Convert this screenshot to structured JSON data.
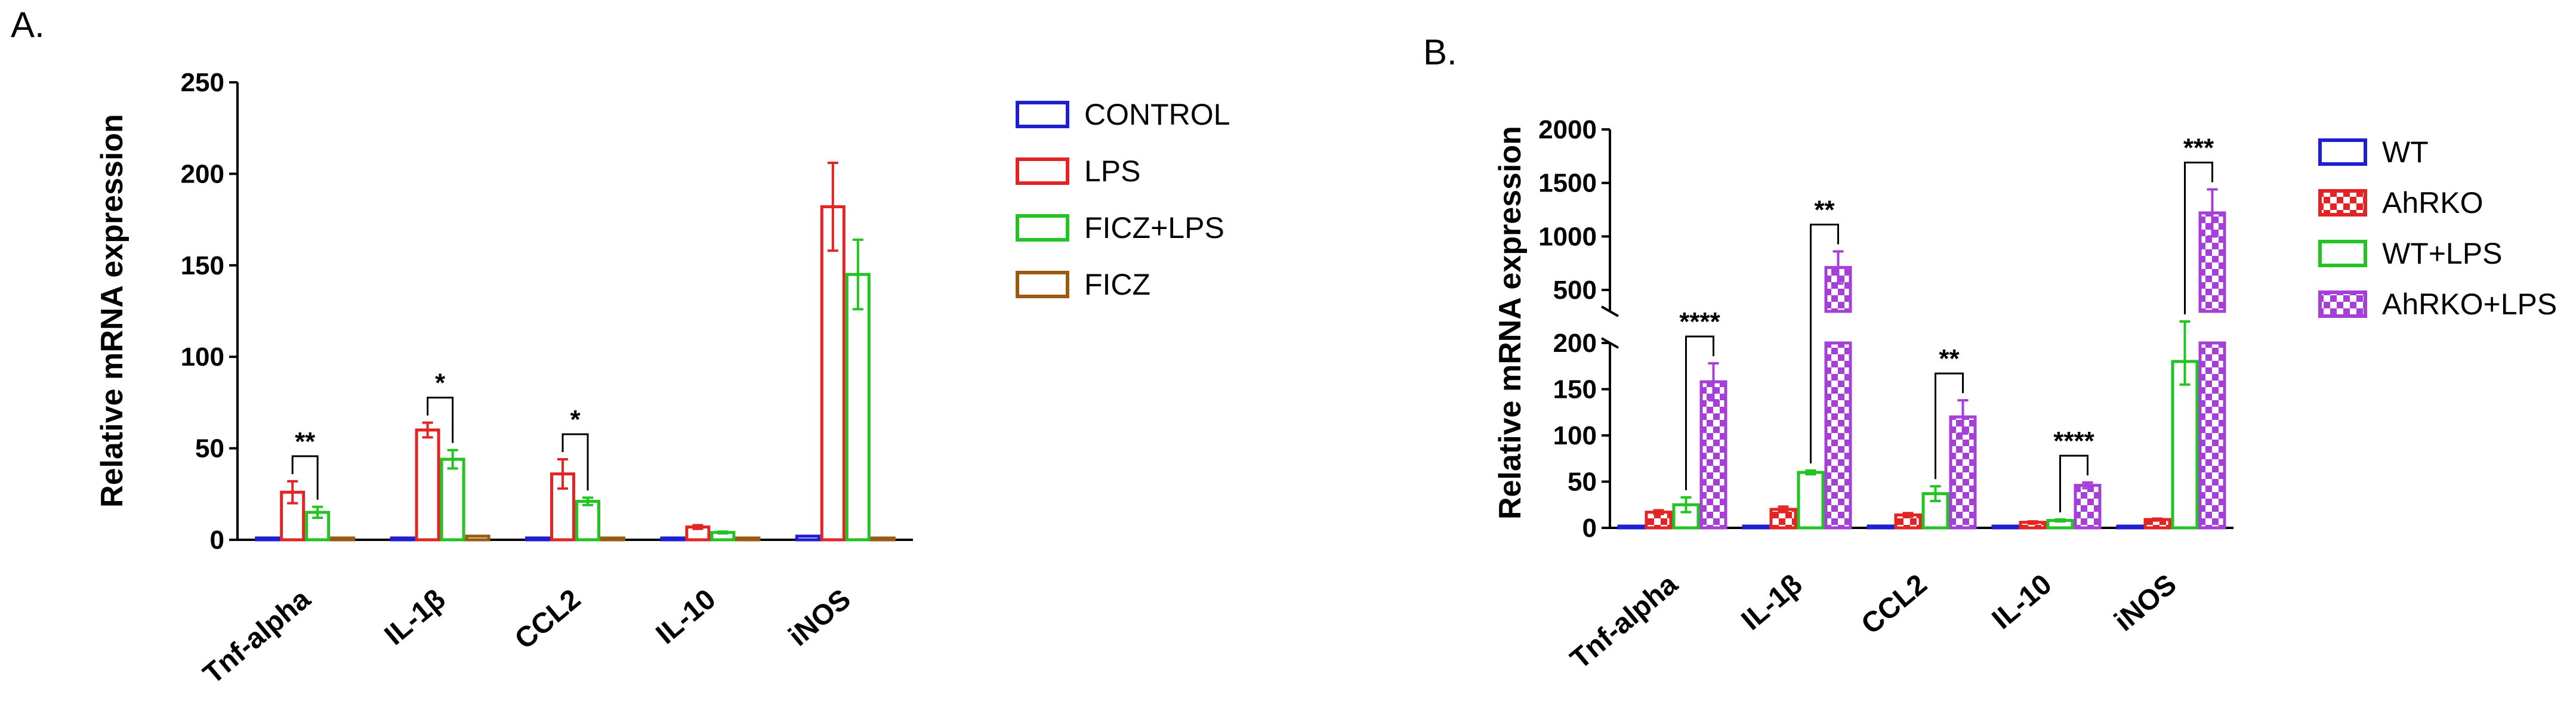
{
  "panels": {
    "a": {
      "letter": "A."
    },
    "b": {
      "letter": "B."
    }
  },
  "chart_data": [
    {
      "type": "bar",
      "panel": "A.",
      "ylabel": "Relative mRNA expression",
      "xlabel": "",
      "ylim": [
        0,
        250
      ],
      "yticks": [
        0,
        50,
        100,
        150,
        200,
        250
      ],
      "grid": false,
      "legend_position": "right",
      "categories": [
        "Tnf-alpha",
        "IL-1β",
        "CCL2",
        "IL-10",
        "iNOS"
      ],
      "series": [
        {
          "name": "CONTROL",
          "color": "#1f1fd1",
          "pattern": "solid",
          "values": [
            1,
            1,
            1,
            1,
            2
          ],
          "errors": [
            0,
            0,
            0,
            0,
            0
          ]
        },
        {
          "name": "LPS",
          "color": "#e32424",
          "pattern": "solid",
          "values": [
            26,
            60,
            36,
            7,
            182
          ],
          "errors": [
            6,
            4,
            8,
            1,
            24
          ]
        },
        {
          "name": "FICZ+LPS",
          "color": "#22c322",
          "pattern": "solid",
          "values": [
            15,
            44,
            21,
            4,
            145
          ],
          "errors": [
            3,
            5,
            2,
            0.5,
            19
          ]
        },
        {
          "name": "FICZ",
          "color": "#9b5a12",
          "pattern": "solid",
          "values": [
            1,
            2,
            0.5,
            0.5,
            0.5
          ],
          "errors": [
            0,
            0,
            0,
            0,
            0
          ]
        }
      ],
      "annotations": [
        {
          "category": "Tnf-alpha",
          "from": "LPS",
          "to": "FICZ+LPS",
          "text": "**"
        },
        {
          "category": "IL-1β",
          "from": "LPS",
          "to": "FICZ+LPS",
          "text": "*"
        },
        {
          "category": "CCL2",
          "from": "LPS",
          "to": "FICZ+LPS",
          "text": "*"
        }
      ]
    },
    {
      "type": "bar",
      "panel": "B.",
      "ylabel": "Relative mRNA expression",
      "xlabel": "",
      "broken_axis": true,
      "lower_range": [
        0,
        200
      ],
      "upper_range": [
        300,
        2000
      ],
      "yticks_lower": [
        0,
        50,
        100,
        150,
        200
      ],
      "yticks_upper": [
        500,
        1000,
        1500,
        2000
      ],
      "grid": false,
      "legend_position": "right",
      "categories": [
        "Tnf-alpha",
        "IL-1β",
        "CCL2",
        "IL-10",
        "iNOS"
      ],
      "series": [
        {
          "name": "WT",
          "color": "#1f1fd1",
          "pattern": "solid",
          "values": [
            1,
            1,
            2,
            1,
            1
          ],
          "errors": [
            0,
            0,
            0,
            0,
            0
          ]
        },
        {
          "name": "AhRKO",
          "color": "#e32424",
          "pattern": "checker",
          "values": [
            17,
            20,
            14,
            6,
            9
          ],
          "errors": [
            2,
            3,
            2,
            1,
            1
          ]
        },
        {
          "name": "WT+LPS",
          "color": "#22c322",
          "pattern": "solid",
          "values": [
            25,
            60,
            37,
            8,
            180
          ],
          "errors": [
            8,
            2,
            8,
            1,
            25
          ]
        },
        {
          "name": "AhRKO+LPS",
          "color": "#a63fd8",
          "pattern": "checker",
          "values": [
            158,
            710,
            120,
            46,
            1220
          ],
          "errors": [
            20,
            150,
            18,
            3,
            220
          ]
        }
      ],
      "annotations": [
        {
          "category": "Tnf-alpha",
          "from": "WT+LPS",
          "to": "AhRKO+LPS",
          "text": "****"
        },
        {
          "category": "IL-1β",
          "from": "WT+LPS",
          "to": "AhRKO+LPS",
          "text": "**"
        },
        {
          "category": "CCL2",
          "from": "WT+LPS",
          "to": "AhRKO+LPS",
          "text": "**"
        },
        {
          "category": "IL-10",
          "from": "WT+LPS",
          "to": "AhRKO+LPS",
          "text": "****"
        },
        {
          "category": "iNOS",
          "from": "WT+LPS",
          "to": "AhRKO+LPS",
          "text": "***"
        }
      ]
    }
  ]
}
